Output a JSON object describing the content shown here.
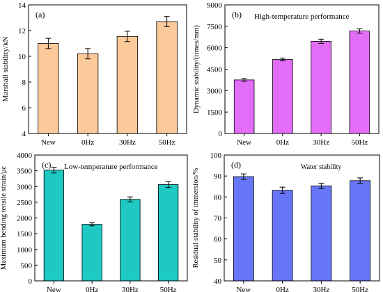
{
  "chart_data": [
    {
      "type": "bar",
      "panel_label": "(a)",
      "title": "",
      "categories": [
        "New",
        "0Hz",
        "30Hz",
        "50Hz"
      ],
      "values": [
        11.0,
        10.2,
        11.55,
        12.7
      ],
      "errors": [
        0.4,
        0.4,
        0.4,
        0.4
      ],
      "xlabel": "",
      "ylabel": "Marshall stability/kN",
      "ylim": [
        4,
        14
      ],
      "yticks": [
        4,
        6,
        8,
        10,
        12,
        14
      ],
      "color": "#fcc99b",
      "grid": false
    },
    {
      "type": "bar",
      "panel_label": "(b)",
      "title": "High-temperature performance",
      "categories": [
        "New",
        "0Hz",
        "30Hz",
        "50Hz"
      ],
      "values": [
        3750,
        5180,
        6450,
        7170
      ],
      "errors": [
        100,
        100,
        150,
        150
      ],
      "xlabel": "",
      "ylabel": "Dynamic stability/(times/mm)",
      "ylim": [
        0,
        9000
      ],
      "yticks": [
        0,
        1500,
        3000,
        4500,
        6000,
        7500,
        9000
      ],
      "color": "#e26ef7",
      "grid": false
    },
    {
      "type": "bar",
      "panel_label": "(c)",
      "title": "Low-temperature performance",
      "categories": [
        "New",
        "0Hz",
        "30Hz",
        "50Hz"
      ],
      "values": [
        3520,
        1800,
        2590,
        3060
      ],
      "errors": [
        90,
        50,
        80,
        90
      ],
      "xlabel": "",
      "ylabel": "Maximum bending tensile strain/με",
      "ylim": [
        0,
        4000
      ],
      "yticks": [
        0,
        500,
        1000,
        1500,
        2000,
        2500,
        3000,
        3500,
        4000
      ],
      "color": "#1ec8c3",
      "grid": false
    },
    {
      "type": "bar",
      "panel_label": "(d)",
      "title": "Water stability",
      "categories": [
        "New",
        "0Hz",
        "30Hz",
        "50Hz"
      ],
      "values": [
        89.7,
        83.2,
        85.3,
        87.8
      ],
      "errors": [
        1.3,
        1.5,
        1.3,
        1.3
      ],
      "xlabel": "",
      "ylabel": "Residual stability of immersion/%",
      "ylim": [
        40,
        100
      ],
      "yticks": [
        40,
        50,
        60,
        70,
        80,
        90,
        100
      ],
      "color": "#6676f6",
      "grid": false
    }
  ]
}
